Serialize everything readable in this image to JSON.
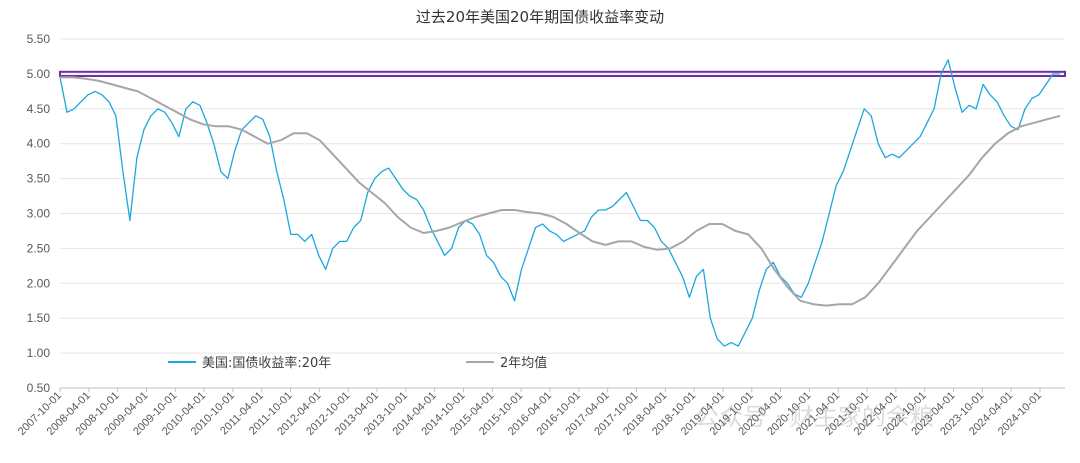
{
  "chart_data": {
    "type": "line",
    "title": "过去20年美国20年期国债收益率变动",
    "ylim": [
      0.5,
      5.5
    ],
    "y_ticks": [
      "5.50",
      "5.00",
      "4.50",
      "4.00",
      "3.50",
      "3.00",
      "2.50",
      "2.00",
      "1.50",
      "1.00",
      "0.50"
    ],
    "x_tick_labels": [
      "2007-10-01",
      "2008-04-01",
      "2008-10-01",
      "2009-04-01",
      "2009-10-01",
      "2010-04-01",
      "2010-10-01",
      "2011-04-01",
      "2011-10-01",
      "2012-04-01",
      "2012-10-01",
      "2013-04-01",
      "2013-10-01",
      "2014-04-01",
      "2014-10-01",
      "2015-04-01",
      "2015-10-01",
      "2016-04-01",
      "2016-10-01",
      "2017-04-01",
      "2017-10-01",
      "2018-04-01",
      "2018-10-01",
      "2019-04-01",
      "2019-10-01",
      "2020-04-01",
      "2020-10-01",
      "2021-04-01",
      "2021-10-01",
      "2022-04-01",
      "2022-10-01",
      "2023-04-01",
      "2023-10-01",
      "2024-04-01",
      "2024-10-01"
    ],
    "grid": "horizontal",
    "legend_position": "bottom-left",
    "highlight_band": {
      "y": [
        4.97,
        5.03
      ],
      "color": "#7030a0"
    },
    "series": [
      {
        "name": "美国:国债收益率:20年",
        "color": "#1ba8dc",
        "values": [
          4.95,
          4.45,
          4.5,
          4.6,
          4.7,
          4.75,
          4.7,
          4.6,
          4.4,
          3.6,
          2.9,
          3.8,
          4.2,
          4.4,
          4.5,
          4.45,
          4.3,
          4.1,
          4.5,
          4.6,
          4.55,
          4.3,
          4.0,
          3.6,
          3.5,
          3.9,
          4.2,
          4.3,
          4.4,
          4.35,
          4.1,
          3.6,
          3.2,
          2.7,
          2.7,
          2.6,
          2.7,
          2.4,
          2.2,
          2.5,
          2.6,
          2.6,
          2.8,
          2.9,
          3.3,
          3.5,
          3.6,
          3.65,
          3.5,
          3.35,
          3.25,
          3.2,
          3.05,
          2.8,
          2.6,
          2.4,
          2.5,
          2.8,
          2.9,
          2.85,
          2.7,
          2.4,
          2.3,
          2.1,
          2.0,
          1.75,
          2.2,
          2.5,
          2.8,
          2.85,
          2.75,
          2.7,
          2.6,
          2.65,
          2.7,
          2.75,
          2.95,
          3.05,
          3.05,
          3.1,
          3.2,
          3.3,
          3.1,
          2.9,
          2.9,
          2.8,
          2.6,
          2.5,
          2.3,
          2.1,
          1.8,
          2.1,
          2.2,
          1.5,
          1.2,
          1.1,
          1.15,
          1.1,
          1.3,
          1.5,
          1.9,
          2.2,
          2.3,
          2.1,
          2.0,
          1.85,
          1.8,
          2.0,
          2.3,
          2.6,
          3.0,
          3.4,
          3.6,
          3.9,
          4.2,
          4.5,
          4.4,
          4.0,
          3.8,
          3.85,
          3.8,
          3.9,
          4.0,
          4.1,
          4.3,
          4.5,
          5.0,
          5.2,
          4.8,
          4.45,
          4.55,
          4.5,
          4.85,
          4.7,
          4.6,
          4.4,
          4.25,
          4.2,
          4.5,
          4.65,
          4.7,
          4.85,
          5.0,
          5.0
        ]
      },
      {
        "name": "2年均值",
        "color": "#a6a6a6",
        "values": [
          4.95,
          4.95,
          4.93,
          4.9,
          4.85,
          4.8,
          4.75,
          4.65,
          4.55,
          4.45,
          4.35,
          4.28,
          4.25,
          4.25,
          4.2,
          4.1,
          4.0,
          4.05,
          4.15,
          4.15,
          4.05,
          3.85,
          3.65,
          3.45,
          3.3,
          3.15,
          2.95,
          2.8,
          2.72,
          2.75,
          2.8,
          2.88,
          2.95,
          3.0,
          3.05,
          3.05,
          3.02,
          3.0,
          2.95,
          2.85,
          2.72,
          2.6,
          2.55,
          2.6,
          2.6,
          2.52,
          2.48,
          2.5,
          2.6,
          2.75,
          2.85,
          2.85,
          2.75,
          2.7,
          2.5,
          2.2,
          1.95,
          1.75,
          1.7,
          1.68,
          1.7,
          1.7,
          1.8,
          2.0,
          2.25,
          2.5,
          2.75,
          2.95,
          3.15,
          3.35,
          3.55,
          3.8,
          4.0,
          4.15,
          4.25,
          4.3,
          4.35,
          4.4
        ]
      }
    ]
  },
  "watermark": "公众号 · 财主家的余粮"
}
